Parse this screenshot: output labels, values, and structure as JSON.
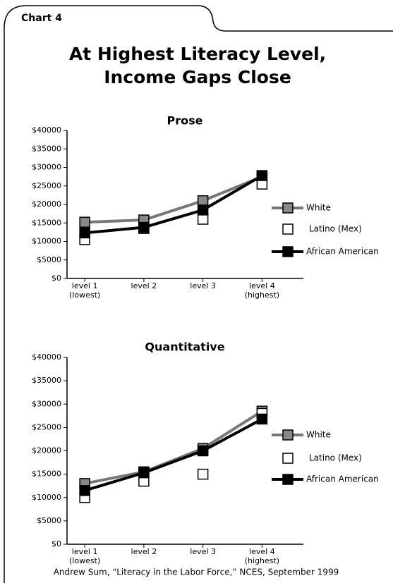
{
  "label": "Chart 4",
  "title": "At Highest Literacy Level, Income Gaps Close",
  "source": "Andrew Sum, “Literacy in the Labor Force,” NCES, September 1999",
  "chart_data": [
    {
      "type": "line",
      "title": "Prose",
      "categories": [
        "level 1 (lowest)",
        "level 2",
        "level 3",
        "level 4 (highest)"
      ],
      "ylim": [
        0,
        40000
      ],
      "yticks": [
        {
          "value": 0,
          "label": "$0"
        },
        {
          "value": 5000,
          "label": "$5000"
        },
        {
          "value": 10000,
          "label": "$10000"
        },
        {
          "value": 15000,
          "label": "$15000"
        },
        {
          "value": 20000,
          "label": "$20000"
        },
        {
          "value": 25000,
          "label": "$25000"
        },
        {
          "value": 30000,
          "label": "$30000"
        },
        {
          "value": 35000,
          "label": "$35000"
        },
        {
          "value": 40000,
          "label": "$40000"
        }
      ],
      "series": [
        {
          "name": "White",
          "color": "#777777",
          "marker_fill": "#888888",
          "line": true,
          "values": [
            15200,
            15800,
            21000,
            27500
          ]
        },
        {
          "name": "Latino (Mex)",
          "color": "#000000",
          "marker_fill": "#ffffff",
          "line": false,
          "values": [
            10500,
            13500,
            16000,
            25500
          ]
        },
        {
          "name": "African American",
          "color": "#000000",
          "marker_fill": "#000000",
          "line": true,
          "values": [
            12300,
            13800,
            18500,
            27800
          ]
        }
      ]
    },
    {
      "type": "line",
      "title": "Quantitative",
      "categories": [
        "level 1 (lowest)",
        "level 2",
        "level 3",
        "level 4 (highest)"
      ],
      "ylim": [
        0,
        40000
      ],
      "yticks": [
        {
          "value": 0,
          "label": "$0"
        },
        {
          "value": 5000,
          "label": "$5000"
        },
        {
          "value": 10000,
          "label": "$10000"
        },
        {
          "value": 15000,
          "label": "$15000"
        },
        {
          "value": 20000,
          "label": "$20000"
        },
        {
          "value": 25000,
          "label": "$25000"
        },
        {
          "value": 30000,
          "label": "$30000"
        },
        {
          "value": 35000,
          "label": "$35000"
        },
        {
          "value": 40000,
          "label": "$40000"
        }
      ],
      "series": [
        {
          "name": "White",
          "color": "#777777",
          "marker_fill": "#888888",
          "line": true,
          "values": [
            13000,
            15500,
            20500,
            28500
          ]
        },
        {
          "name": "Latino (Mex)",
          "color": "#000000",
          "marker_fill": "#ffffff",
          "line": false,
          "values": [
            10000,
            13500,
            15000,
            28000
          ]
        },
        {
          "name": "African American",
          "color": "#000000",
          "marker_fill": "#000000",
          "line": true,
          "values": [
            11500,
            15300,
            20000,
            26800
          ]
        }
      ]
    }
  ]
}
